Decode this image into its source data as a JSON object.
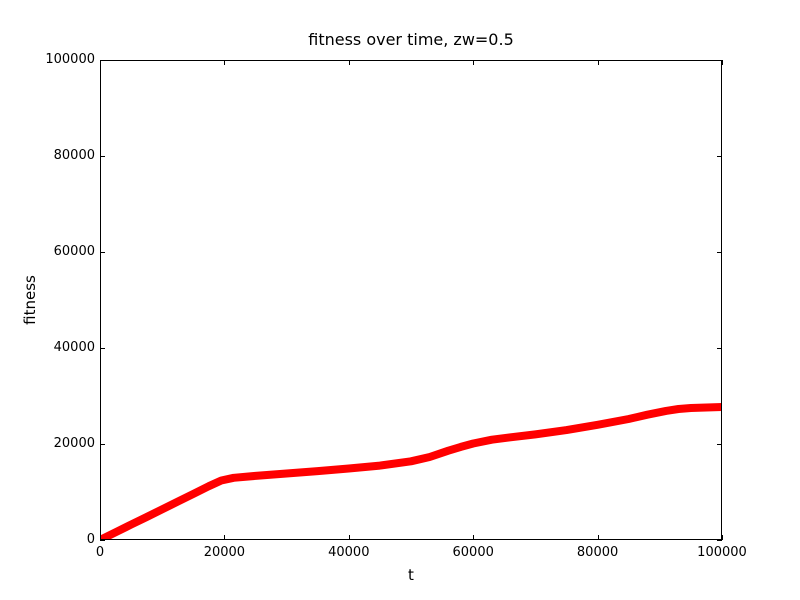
{
  "chart_data": {
    "type": "line",
    "title": "fitness over time, zw=0.5",
    "xlabel": "t",
    "ylabel": "fitness",
    "xlim": [
      0,
      100000
    ],
    "ylim": [
      0,
      100000
    ],
    "grid": false,
    "legend": null,
    "xticks": [
      0,
      20000,
      40000,
      60000,
      80000,
      100000
    ],
    "xtick_labels": [
      "0",
      "20000",
      "40000",
      "60000",
      "80000",
      "100000"
    ],
    "yticks": [
      0,
      20000,
      40000,
      60000,
      80000,
      100000
    ],
    "ytick_labels": [
      "0",
      "20000",
      "40000",
      "60000",
      "80000",
      "100000"
    ],
    "series": [
      {
        "name": "fitness",
        "color": "#ff0000",
        "style": "dense-marker-band",
        "x": [
          0,
          2500,
          5000,
          7500,
          10000,
          12500,
          15000,
          17500,
          19500,
          21500,
          25000,
          30000,
          35000,
          40000,
          45000,
          50000,
          53000,
          56000,
          58000,
          60000,
          63000,
          66000,
          70000,
          75000,
          80000,
          85000,
          88000,
          91000,
          93000,
          95000,
          100000
        ],
        "y": [
          0,
          1600,
          3200,
          4800,
          6400,
          8000,
          9600,
          11200,
          12400,
          12950,
          13350,
          13850,
          14350,
          14900,
          15500,
          16400,
          17300,
          18600,
          19400,
          20100,
          20900,
          21400,
          22000,
          22900,
          24000,
          25200,
          26100,
          26900,
          27300,
          27500,
          27700
        ]
      }
    ],
    "colors": {
      "line": "#ff0000",
      "spine": "#000000",
      "text": "#000000",
      "background": "#ffffff"
    }
  }
}
